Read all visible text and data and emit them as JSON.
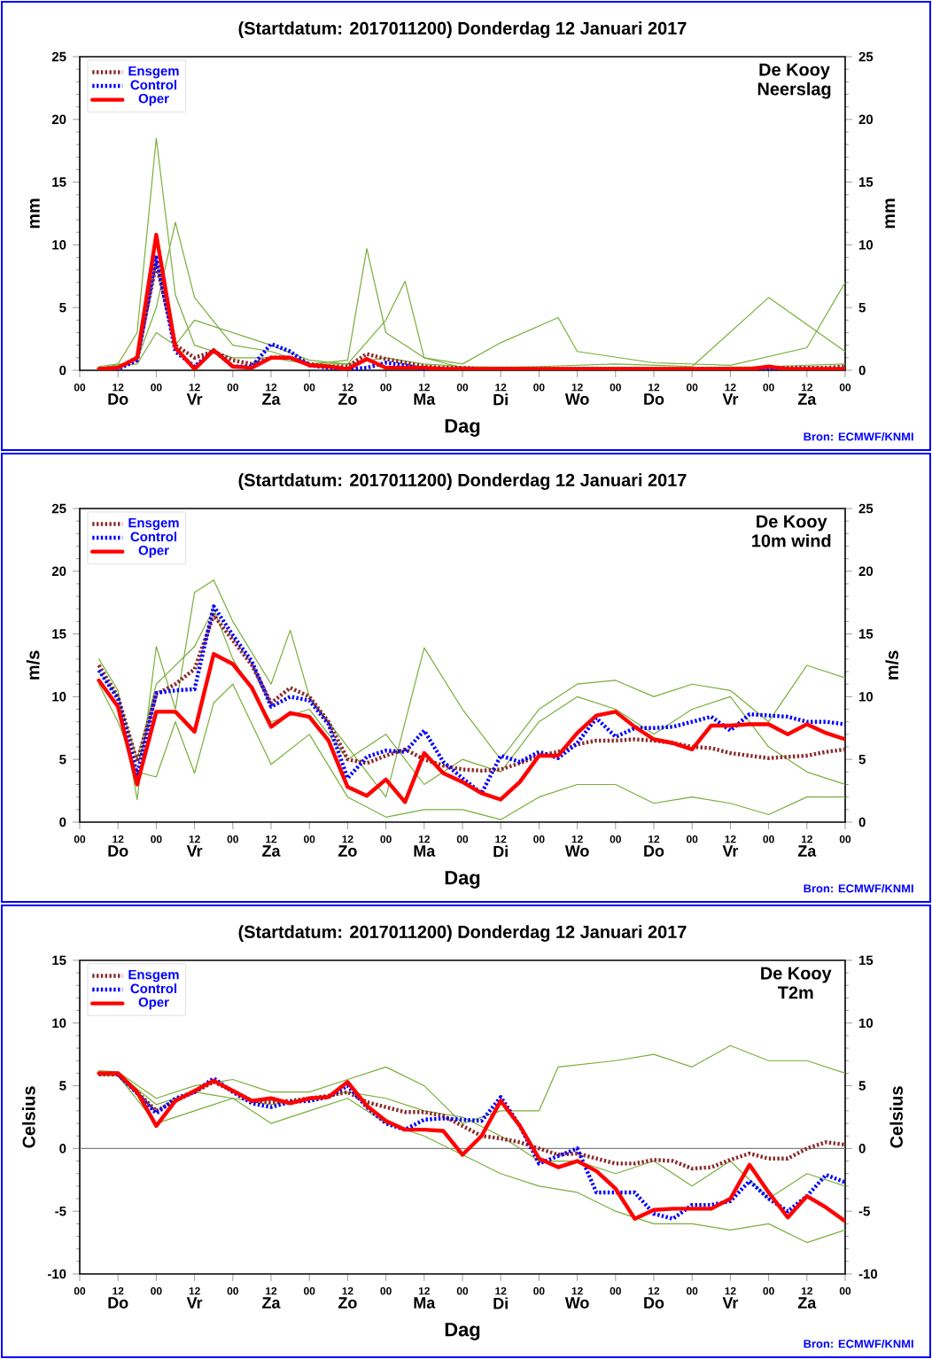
{
  "chart_data": [
    {
      "type": "line",
      "title": "(Startdatum: 2017011200) Donderdag 12 Januari 2017",
      "xlabel": "Dag",
      "ylabel": "mm",
      "y2label": "mm",
      "annotations": [
        "De Kooy",
        "Neerslag",
        "Do",
        "Vr",
        "Za",
        "Zo",
        "Ma",
        "Di",
        "Wo",
        "Do",
        "Vr",
        "Za",
        "Bron: ECMWF/KNMI"
      ],
      "xlim": [
        0,
        240
      ],
      "ylim": [
        0,
        25
      ],
      "yticks": [
        0,
        5,
        10,
        15,
        20,
        25
      ],
      "y2lim": [
        0,
        25
      ],
      "y2ticks": [
        0,
        5,
        10,
        15,
        20,
        25
      ],
      "xticks": [
        {
          "value": 0,
          "label": "00"
        },
        {
          "value": 12,
          "label": "12"
        },
        {
          "value": 24,
          "label": "00"
        },
        {
          "value": 36,
          "label": "12"
        },
        {
          "value": 48,
          "label": "00"
        },
        {
          "value": 60,
          "label": "12"
        },
        {
          "value": 72,
          "label": "00"
        },
        {
          "value": 84,
          "label": "12"
        },
        {
          "value": 96,
          "label": "00"
        },
        {
          "value": 108,
          "label": "12"
        },
        {
          "value": 120,
          "label": "00"
        },
        {
          "value": 132,
          "label": "12"
        },
        {
          "value": 144,
          "label": "00"
        },
        {
          "value": 156,
          "label": "12"
        },
        {
          "value": 168,
          "label": "00"
        },
        {
          "value": 180,
          "label": "12"
        },
        {
          "value": 192,
          "label": "00"
        },
        {
          "value": 204,
          "label": "12"
        },
        {
          "value": 216,
          "label": "00"
        },
        {
          "value": 228,
          "label": "12"
        },
        {
          "value": 240,
          "label": "00"
        }
      ],
      "legend": "top left",
      "x": [
        6,
        12,
        18,
        24,
        30,
        36,
        42,
        48,
        54,
        60,
        66,
        72,
        78,
        84,
        90,
        96,
        102,
        108,
        114,
        120,
        126,
        132,
        138,
        144,
        150,
        156,
        162,
        168,
        174,
        180,
        186,
        192,
        198,
        204,
        210,
        216,
        222,
        228,
        234,
        240
      ],
      "series": [
        {
          "color": "#7aae3a",
          "line_style": "solid",
          "x": [
            6,
            12,
            18,
            24,
            30,
            36,
            48,
            60,
            72,
            84,
            96,
            108,
            120,
            144,
            168,
            192,
            216,
            240
          ],
          "values": [
            0.3,
            0.5,
            3,
            18.5,
            6,
            2,
            1,
            1,
            0.5,
            0.5,
            1,
            0.5,
            0.3,
            0.2,
            0.2,
            0.2,
            0.3,
            0.5
          ]
        },
        {
          "color": "#7aae3a",
          "line_style": "solid",
          "x": [
            6,
            18,
            24,
            30,
            36,
            48,
            60,
            72,
            84,
            90,
            96,
            108,
            120,
            144,
            168,
            192,
            216,
            240
          ],
          "values": [
            0.1,
            0.8,
            5,
            11.8,
            5.8,
            2,
            1.5,
            0.5,
            0.8,
            9.7,
            3,
            1,
            0.2,
            0.3,
            0.5,
            0.3,
            5.8,
            1.5
          ]
        },
        {
          "color": "#7aae3a",
          "line_style": "solid",
          "x": [
            6,
            18,
            24,
            30,
            36,
            60,
            72,
            84,
            96,
            102,
            108,
            120,
            132,
            150,
            156,
            180,
            204,
            228,
            240
          ],
          "values": [
            0.2,
            0.5,
            3,
            2,
            4,
            2,
            0.8,
            0.5,
            4,
            7.1,
            1,
            0.5,
            2.2,
            4.2,
            1.5,
            0.6,
            0.4,
            1.8,
            7.0
          ]
        },
        {
          "name": "Ensgem",
          "color": "#8b2a2a",
          "line_style": "dotted",
          "values": [
            0.1,
            0.2,
            1.0,
            8.5,
            2.0,
            1.0,
            1.5,
            0.8,
            0.5,
            1.0,
            1.0,
            0.5,
            0.3,
            0.3,
            1.3,
            0.9,
            0.6,
            0.3,
            0.2,
            0.2,
            0.1,
            0.1,
            0.1,
            0.1,
            0.1,
            0.1,
            0.1,
            0.1,
            0.1,
            0.1,
            0.1,
            0.1,
            0.1,
            0.1,
            0.1,
            0.2,
            0.2,
            0.2,
            0.2,
            0.3
          ]
        },
        {
          "name": "Control",
          "color": "#0000ff",
          "line_style": "dotted",
          "values": [
            0,
            0.1,
            0.8,
            9.0,
            1.5,
            0.3,
            1.6,
            0.3,
            0.3,
            2.1,
            1.5,
            0.4,
            0.2,
            0.1,
            0.2,
            0.6,
            0.4,
            0.1,
            0,
            0,
            0,
            0,
            0,
            0,
            0,
            0,
            0,
            0,
            0,
            0,
            0,
            0,
            0,
            0,
            0,
            0.1,
            0,
            0,
            null,
            null
          ]
        },
        {
          "name": "Oper",
          "color": "#ff0000",
          "line_style": "solid",
          "values": [
            0.1,
            0.2,
            1.0,
            10.8,
            1.8,
            0.1,
            1.6,
            0.3,
            0.2,
            1.0,
            1.0,
            0.4,
            0.3,
            0.1,
            0.9,
            0.2,
            0.2,
            0.2,
            0.1,
            0.1,
            0.1,
            0.1,
            0.1,
            0.1,
            0.1,
            0.1,
            0.1,
            0.1,
            0.1,
            0.1,
            0.1,
            0.1,
            0.1,
            0.1,
            0.1,
            0.3,
            0.1,
            0.1,
            0.1,
            0.1
          ]
        }
      ]
    },
    {
      "type": "line",
      "title": "(Startdatum: 2017011200) Donderdag 12 Januari 2017",
      "xlabel": "Dag",
      "ylabel": "m/s",
      "y2label": "m/s",
      "annotations": [
        "De Kooy",
        "10m wind",
        "Do",
        "Vr",
        "Za",
        "Zo",
        "Ma",
        "Di",
        "Wo",
        "Do",
        "Vr",
        "Za",
        "Bron: ECMWF/KNMI"
      ],
      "xlim": [
        0,
        240
      ],
      "ylim": [
        0,
        25
      ],
      "yticks": [
        0,
        5,
        10,
        15,
        20,
        25
      ],
      "y2lim": [
        0,
        25
      ],
      "y2ticks": [
        0,
        5,
        10,
        15,
        20,
        25
      ],
      "xticks": [
        {
          "value": 0,
          "label": "00"
        },
        {
          "value": 12,
          "label": "12"
        },
        {
          "value": 24,
          "label": "00"
        },
        {
          "value": 36,
          "label": "12"
        },
        {
          "value": 48,
          "label": "00"
        },
        {
          "value": 60,
          "label": "12"
        },
        {
          "value": 72,
          "label": "00"
        },
        {
          "value": 84,
          "label": "12"
        },
        {
          "value": 96,
          "label": "00"
        },
        {
          "value": 108,
          "label": "12"
        },
        {
          "value": 120,
          "label": "00"
        },
        {
          "value": 132,
          "label": "12"
        },
        {
          "value": 144,
          "label": "00"
        },
        {
          "value": 156,
          "label": "12"
        },
        {
          "value": 168,
          "label": "00"
        },
        {
          "value": 180,
          "label": "12"
        },
        {
          "value": 192,
          "label": "00"
        },
        {
          "value": 204,
          "label": "12"
        },
        {
          "value": 216,
          "label": "00"
        },
        {
          "value": 228,
          "label": "12"
        },
        {
          "value": 240,
          "label": "00"
        }
      ],
      "legend": "top left",
      "x": [
        6,
        12,
        18,
        24,
        30,
        36,
        42,
        48,
        54,
        60,
        66,
        72,
        78,
        84,
        90,
        96,
        102,
        108,
        114,
        120,
        126,
        132,
        138,
        144,
        150,
        156,
        162,
        168,
        174,
        180,
        186,
        192,
        198,
        204,
        210,
        216,
        222,
        228,
        234,
        240
      ],
      "series": [
        {
          "color": "#7aae3a",
          "line_style": "solid",
          "x": [
            6,
            12,
            18,
            24,
            30,
            36,
            42,
            48,
            60,
            66,
            72,
            84,
            96,
            108,
            120,
            132,
            144,
            156,
            168,
            180,
            192,
            204,
            216,
            228,
            240
          ],
          "values": [
            13,
            10.5,
            1.8,
            14,
            9,
            18.3,
            19.3,
            16,
            11,
            15.3,
            10,
            6,
            2,
            13.9,
            9,
            5,
            9,
            11,
            11.3,
            10,
            11,
            10.5,
            8,
            12.5,
            11.5
          ]
        },
        {
          "color": "#7aae3a",
          "line_style": "solid",
          "x": [
            6,
            12,
            18,
            24,
            30,
            36,
            42,
            48,
            60,
            72,
            84,
            96,
            108,
            120,
            132,
            144,
            156,
            168,
            180,
            192,
            204,
            216,
            228,
            240
          ],
          "values": [
            11,
            8,
            4,
            3.6,
            8,
            3.9,
            9.5,
            11,
            4.6,
            7,
            2,
            0.4,
            1,
            1,
            0.2,
            2,
            3,
            3,
            1.5,
            2,
            1.5,
            0.6,
            2,
            2
          ]
        },
        {
          "color": "#7aae3a",
          "line_style": "solid",
          "x": [
            6,
            12,
            18,
            24,
            36,
            42,
            48,
            60,
            72,
            84,
            96,
            108,
            120,
            132,
            144,
            156,
            168,
            180,
            192,
            204,
            216,
            228,
            240
          ],
          "values": [
            12,
            10,
            5,
            11,
            14,
            17,
            13,
            8,
            9,
            5,
            7,
            3,
            5,
            4,
            8,
            10,
            9,
            7,
            9,
            10,
            6,
            4,
            3
          ]
        },
        {
          "name": "Ensgem",
          "color": "#8b2a2a",
          "line_style": "dotted",
          "values": [
            12.5,
            10,
            4.8,
            10.2,
            11,
            12.2,
            16.5,
            14.5,
            12.5,
            9.5,
            10.7,
            10,
            8,
            5,
            4.7,
            5.3,
            5.8,
            5,
            4.5,
            4.2,
            4.1,
            4.2,
            4.7,
            5.3,
            5.6,
            6.2,
            6.5,
            6.5,
            6.6,
            6.5,
            6.3,
            6.0,
            5.9,
            5.5,
            5.3,
            5.1,
            5.2,
            5.3,
            5.6,
            5.8
          ]
        },
        {
          "name": "Control",
          "color": "#0000ff",
          "line_style": "dotted",
          "values": [
            12.1,
            9.8,
            3.8,
            10.3,
            10.5,
            10.6,
            17.2,
            14.9,
            12.8,
            9.2,
            10.0,
            9.7,
            7.8,
            3.5,
            5.2,
            5.7,
            5.6,
            7.3,
            4.8,
            3.5,
            2.3,
            5.3,
            4.8,
            5.6,
            5.1,
            6.3,
            8.3,
            6.8,
            7.5,
            7.5,
            7.6,
            8.0,
            8.4,
            7.3,
            8.6,
            8.5,
            8.4,
            8.0,
            8.0,
            7.8
          ]
        },
        {
          "name": "Oper",
          "color": "#ff0000",
          "line_style": "solid",
          "values": [
            11.3,
            9.2,
            3.0,
            8.8,
            8.8,
            7.2,
            13.4,
            12.6,
            10.7,
            7.6,
            8.7,
            8.4,
            6.5,
            2.8,
            2.1,
            3.4,
            1.6,
            5.5,
            3.9,
            3.2,
            2.3,
            1.8,
            3.2,
            5.3,
            5.3,
            7.1,
            8.5,
            8.8,
            7.6,
            6.6,
            6.3,
            5.8,
            7.7,
            7.7,
            7.8,
            7.8,
            7.0,
            7.8,
            7.1,
            6.6
          ]
        }
      ]
    },
    {
      "type": "line",
      "title": "(Startdatum: 2017011200) Donderdag 12 Januari 2017",
      "xlabel": "Dag",
      "ylabel": "Celsius",
      "y2label": "Celsius",
      "annotations": [
        "De Kooy",
        "T2m",
        "Do",
        "Vr",
        "Za",
        "Zo",
        "Ma",
        "Di",
        "Wo",
        "Do",
        "Vr",
        "Za",
        "Bron: ECMWF/KNMI"
      ],
      "xlim": [
        0,
        240
      ],
      "ylim": [
        -10,
        15
      ],
      "yticks": [
        -10,
        -5,
        0,
        5,
        10,
        15
      ],
      "y2lim": [
        -10,
        15
      ],
      "y2ticks": [
        -10,
        -5,
        0,
        5,
        10,
        15
      ],
      "xticks": [
        {
          "value": 0,
          "label": "00"
        },
        {
          "value": 12,
          "label": "12"
        },
        {
          "value": 24,
          "label": "00"
        },
        {
          "value": 36,
          "label": "12"
        },
        {
          "value": 48,
          "label": "00"
        },
        {
          "value": 60,
          "label": "12"
        },
        {
          "value": 72,
          "label": "00"
        },
        {
          "value": 84,
          "label": "12"
        },
        {
          "value": 96,
          "label": "00"
        },
        {
          "value": 108,
          "label": "12"
        },
        {
          "value": 120,
          "label": "00"
        },
        {
          "value": 132,
          "label": "12"
        },
        {
          "value": 144,
          "label": "00"
        },
        {
          "value": 156,
          "label": "12"
        },
        {
          "value": 168,
          "label": "00"
        },
        {
          "value": 180,
          "label": "12"
        },
        {
          "value": 192,
          "label": "00"
        },
        {
          "value": 204,
          "label": "12"
        },
        {
          "value": 216,
          "label": "00"
        },
        {
          "value": 228,
          "label": "12"
        },
        {
          "value": 240,
          "label": "00"
        }
      ],
      "legend": "top left",
      "ref_lines": [
        {
          "axis": "y",
          "value": 0,
          "color": "#808080"
        }
      ],
      "x": [
        6,
        12,
        18,
        24,
        30,
        36,
        42,
        48,
        54,
        60,
        66,
        72,
        78,
        84,
        90,
        96,
        102,
        108,
        114,
        120,
        126,
        132,
        138,
        144,
        150,
        156,
        162,
        168,
        174,
        180,
        186,
        192,
        198,
        204,
        210,
        216,
        222,
        228,
        234,
        240
      ],
      "series": [
        {
          "color": "#7aae3a",
          "line_style": "solid",
          "x": [
            6,
            12,
            24,
            36,
            48,
            60,
            72,
            84,
            96,
            108,
            120,
            132,
            144,
            150,
            168,
            180,
            192,
            204,
            216,
            228,
            240
          ],
          "values": [
            6.2,
            6.1,
            4,
            5,
            5.5,
            4.5,
            4.5,
            5.5,
            6.5,
            5,
            2,
            3,
            3,
            6.5,
            7,
            7.5,
            6.5,
            8.2,
            7,
            7,
            6
          ]
        },
        {
          "color": "#7aae3a",
          "line_style": "solid",
          "x": [
            6,
            12,
            24,
            36,
            48,
            60,
            72,
            84,
            96,
            108,
            120,
            132,
            144,
            156,
            168,
            180,
            192,
            204,
            216,
            228,
            240
          ],
          "values": [
            5.8,
            5.8,
            2,
            3,
            4,
            2,
            3,
            4,
            2,
            1,
            -0.5,
            -2,
            -3,
            -3.5,
            -5,
            -6,
            -6,
            -6.5,
            -6,
            -7.5,
            -6.5
          ]
        },
        {
          "color": "#7aae3a",
          "line_style": "solid",
          "x": [
            6,
            12,
            24,
            36,
            48,
            60,
            72,
            84,
            96,
            108,
            120,
            132,
            144,
            156,
            168,
            180,
            192,
            204,
            216,
            228,
            240
          ],
          "values": [
            6,
            6,
            3.5,
            4.5,
            4,
            3.5,
            4,
            4.5,
            4,
            3,
            2.5,
            1,
            -1,
            -1,
            -2,
            -1,
            -3,
            -1,
            -4,
            -2,
            -3
          ]
        },
        {
          "name": "Ensgem",
          "color": "#8b2a2a",
          "line_style": "dotted",
          "values": [
            5.9,
            5.9,
            4.5,
            3.0,
            3.8,
            4.5,
            5.3,
            4.6,
            3.8,
            3.7,
            3.8,
            4.0,
            4.2,
            4.5,
            3.7,
            3.3,
            2.9,
            2.9,
            2.6,
            1.8,
            1.0,
            0.8,
            0.5,
            0.0,
            -0.5,
            -0.4,
            -0.8,
            -1.2,
            -1.2,
            -0.9,
            -1.0,
            -1.6,
            -1.5,
            -0.9,
            -0.4,
            -0.8,
            -0.8,
            0.0,
            0.5,
            0.3
          ]
        },
        {
          "name": "Control",
          "color": "#0000ff",
          "line_style": "dotted",
          "values": [
            null,
            5.9,
            4.4,
            2.8,
            4.0,
            4.5,
            5.6,
            4.5,
            3.6,
            3.3,
            3.7,
            3.8,
            4.1,
            5.0,
            3.3,
            2.0,
            1.5,
            2.3,
            2.4,
            2.3,
            2.2,
            4.1,
            1.8,
            -1.2,
            -0.6,
            0.0,
            -3.5,
            -3.5,
            -3.5,
            -5.2,
            -5.6,
            -4.5,
            -4.5,
            -4.2,
            -2.6,
            -4.0,
            -5.0,
            -3.8,
            -2.1,
            -2.7
          ]
        },
        {
          "name": "Oper",
          "color": "#ff0000",
          "line_style": "solid",
          "values": [
            6.0,
            6.0,
            4.5,
            1.8,
            3.8,
            4.6,
            5.4,
            4.6,
            3.8,
            4.0,
            3.6,
            4.0,
            4.1,
            5.3,
            3.4,
            2.2,
            1.5,
            1.5,
            1.4,
            -0.5,
            1.0,
            3.8,
            1.8,
            -0.8,
            -1.5,
            -1.0,
            -1.8,
            -3.2,
            -5.6,
            -4.9,
            -4.8,
            -4.8,
            -4.8,
            -4.0,
            -1.3,
            -3.5,
            -5.5,
            -3.8,
            -4.7,
            -5.8
          ]
        }
      ]
    }
  ]
}
